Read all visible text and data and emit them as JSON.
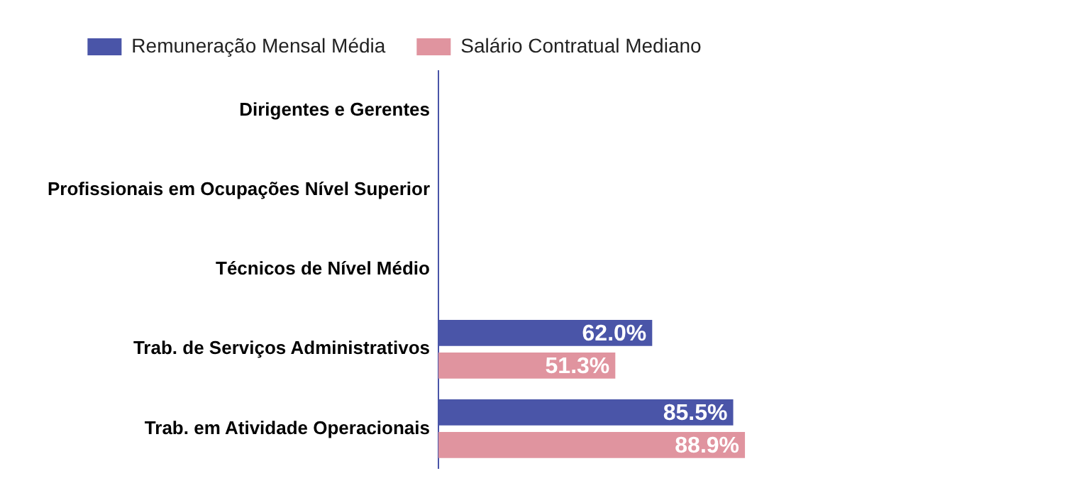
{
  "chart_data": {
    "type": "bar",
    "orientation": "horizontal",
    "categories": [
      "Dirigentes e Gerentes",
      "Profissionais em Ocupações Nível Superior",
      "Técnicos de Nível Médio",
      "Trab. de Serviços Administrativos",
      "Trab. em Atividade Operacionais"
    ],
    "series": [
      {
        "name": "Remuneração Mensal Média",
        "color": "#4a55a8",
        "values": [
          null,
          null,
          null,
          62.0,
          85.5
        ],
        "value_labels": [
          null,
          null,
          null,
          "62.0%",
          "85.5%"
        ]
      },
      {
        "name": "Salário Contratual Mediano",
        "color": "#e0949f",
        "values": [
          null,
          null,
          null,
          51.3,
          88.9
        ],
        "value_labels": [
          null,
          null,
          null,
          "51.3%",
          "88.9%"
        ]
      }
    ],
    "tick_labels": "y",
    "grid": false,
    "legend": "top"
  }
}
